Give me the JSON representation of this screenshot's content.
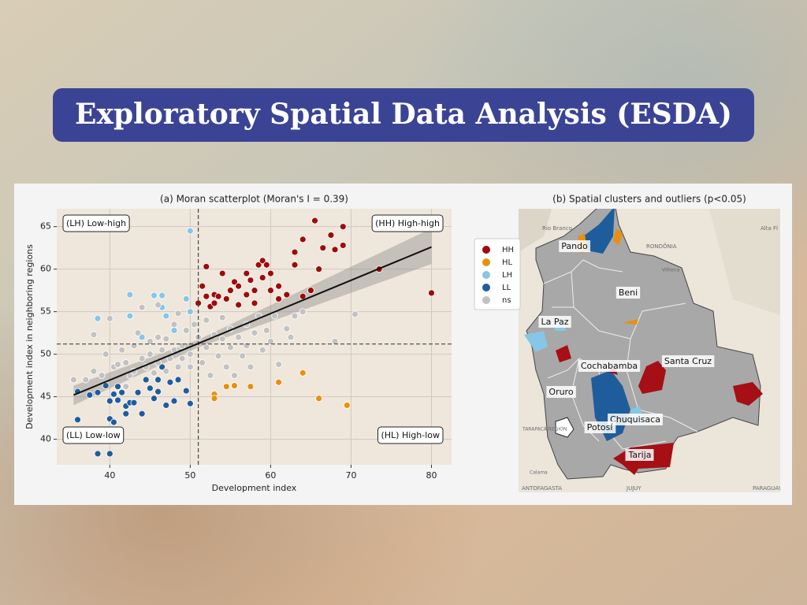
{
  "header": {
    "title": "Exploratory Spatial Data Analysis (ESDA)"
  },
  "chart_data": [
    {
      "type": "scatter",
      "title": "(a) Moran scatterplot (Moran's I = 0.39)",
      "x_label": "Development index",
      "y_label": "Development index in neighboring regions",
      "xlim": [
        33.4,
        82.5
      ],
      "ylim": [
        37,
        67.1
      ],
      "xticks": [
        40,
        50,
        60,
        70,
        80
      ],
      "yticks": [
        40,
        45,
        50,
        55,
        60,
        65
      ],
      "grid": true,
      "mean_x": 51,
      "mean_y": 51.2,
      "trend": {
        "x": [
          35.5,
          80
        ],
        "values": [
          45.2,
          62.6
        ]
      },
      "band": {
        "x": [
          35.5,
          51,
          80
        ],
        "lower": [
          44.0,
          50.8,
          60.6
        ],
        "upper": [
          46.3,
          51.7,
          64.8
        ]
      },
      "annotations": [
        "(LH) Low-high",
        "(HH) High-high",
        "(LL) Low-low",
        "(HL) High-low"
      ],
      "series": [
        {
          "name": "HH",
          "color": "#9e0b0b",
          "x": [
            51,
            51.5,
            52,
            52.5,
            53,
            53,
            54,
            54.5,
            55,
            55.5,
            56,
            56,
            57,
            57.5,
            57,
            58,
            58,
            58.5,
            59,
            59,
            60,
            60,
            61,
            61,
            62,
            63,
            63,
            64,
            64,
            65,
            65.5,
            66,
            66.5,
            67.5,
            68,
            69,
            69,
            73.5,
            80,
            52,
            53.5,
            59.5
          ],
          "values": [
            56,
            58,
            60.3,
            55.6,
            57,
            56,
            59.5,
            56.5,
            57.5,
            58.5,
            58,
            55.8,
            57,
            58.7,
            59.5,
            57.5,
            56,
            60.5,
            59,
            61,
            59.5,
            57.5,
            56.5,
            58,
            57,
            60.5,
            62,
            56.8,
            63.5,
            57.5,
            65.7,
            60,
            62.5,
            64,
            62.3,
            62.8,
            65,
            60,
            57.2,
            56.8,
            56.8,
            60.5
          ]
        },
        {
          "name": "HL",
          "color": "#e8900f",
          "x": [
            53,
            53,
            54.5,
            57.5,
            61,
            64,
            66,
            69.5,
            55.5
          ],
          "values": [
            45.3,
            44.8,
            46.2,
            46.2,
            46.7,
            47.8,
            44.8,
            44,
            46.3
          ]
        },
        {
          "name": "LH",
          "color": "#86c6e6",
          "x": [
            42.5,
            42.5,
            45.5,
            46.5,
            46.5,
            47,
            49.5,
            50,
            44,
            48,
            50,
            38.5
          ],
          "values": [
            57,
            54.5,
            56.9,
            56.9,
            55.5,
            54.5,
            56.5,
            64.5,
            52,
            52.8,
            55,
            54.2
          ]
        },
        {
          "name": "LL",
          "color": "#1f5c9c",
          "x": [
            36,
            36,
            37.5,
            38.5,
            39.5,
            40,
            40,
            40,
            40.5,
            40.5,
            41,
            41.5,
            42,
            42,
            42.5,
            43,
            43.5,
            44,
            44.5,
            45,
            45.5,
            46,
            46,
            46.5,
            47,
            47.5,
            48,
            48.5,
            49.5,
            50,
            41,
            38.5
          ],
          "values": [
            45.6,
            42.3,
            45.2,
            38.3,
            46.3,
            42.4,
            44.5,
            38.3,
            45.3,
            42,
            44.6,
            45.5,
            43,
            43.9,
            44.3,
            44.3,
            45.5,
            43,
            47,
            46,
            44.8,
            47,
            45.6,
            48.5,
            44,
            46.7,
            44.5,
            47,
            45.7,
            44.2,
            46.2,
            45.5
          ]
        },
        {
          "name": "ns",
          "color": "#c2c2c2",
          "x": [
            35.5,
            37,
            38,
            38,
            39,
            39.5,
            40,
            40.5,
            41,
            41.5,
            42,
            42.5,
            43,
            43,
            43.5,
            44,
            44.5,
            45,
            45,
            45.5,
            46,
            46,
            46.5,
            47,
            47,
            47.5,
            48,
            48,
            48.5,
            49,
            49,
            49.5,
            50,
            50,
            50.5,
            51,
            51.5,
            52,
            52,
            52.5,
            53,
            53.5,
            54,
            54,
            54.5,
            55,
            55,
            55.5,
            56,
            56.5,
            57,
            57,
            57.5,
            58,
            58.5,
            59,
            59.5,
            60,
            60.5,
            61,
            62,
            62.5,
            63,
            64,
            68,
            70.5,
            44,
            46,
            48.5,
            42
          ],
          "values": [
            47,
            47,
            48,
            52.3,
            47.5,
            50,
            54.2,
            48.5,
            48.8,
            50.5,
            49,
            47.5,
            48,
            51,
            52.5,
            49.5,
            48.5,
            50,
            51.5,
            47.8,
            49,
            52,
            50.5,
            48,
            51.8,
            49.5,
            50.5,
            53.5,
            48.5,
            51,
            49.5,
            52.8,
            50,
            48.5,
            53.5,
            52,
            49,
            50.8,
            54,
            47.5,
            52.3,
            49.8,
            51.8,
            54.3,
            48.5,
            50.8,
            53,
            47.5,
            52,
            49.8,
            53.5,
            51,
            48.5,
            52.5,
            54.5,
            50.5,
            52.8,
            51.5,
            54.5,
            48.8,
            53,
            52,
            54.5,
            55,
            51.5,
            54.7,
            55.5,
            55.8,
            54.8,
            46.2
          ]
        }
      ]
    },
    {
      "type": "map",
      "title": "(b) Spatial clusters and outliers (p<0.05)",
      "regions": [
        "Pando",
        "Beni",
        "La Paz",
        "Santa Cruz",
        "Cochabamba",
        "Oruro",
        "Chuquisaca",
        "Potosí",
        "Tarija"
      ],
      "basemap_labels": [
        "Rio Branco",
        "RONDÔNIA",
        "Alta Fl",
        "Vilhena",
        "TARAPACÁ REGION",
        "Calama",
        "ANTOFAGASTA",
        "JUJUY",
        "PARAGUAY"
      ]
    }
  ]
}
